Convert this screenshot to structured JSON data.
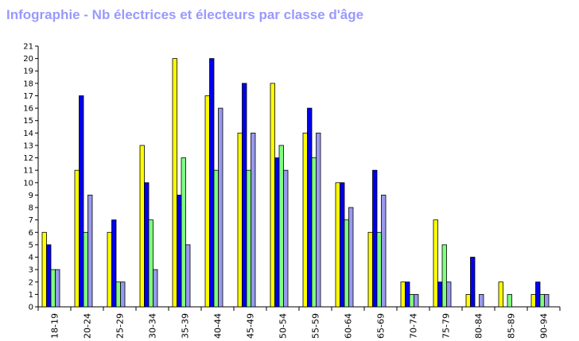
{
  "chart_data": {
    "type": "bar",
    "title": "Infographie - Nb électrices et électeurs par classe d'âge",
    "xlabel": "",
    "ylabel": "",
    "ylim": [
      0,
      21
    ],
    "yticks": [
      0,
      1,
      2,
      3,
      4,
      5,
      6,
      7,
      8,
      9,
      10,
      11,
      12,
      13,
      14,
      15,
      16,
      17,
      18,
      19,
      20,
      21
    ],
    "grid": false,
    "legend": "none",
    "categories": [
      "18-19",
      "20-24",
      "25-29",
      "30-34",
      "35-39",
      "40-44",
      "45-49",
      "50-54",
      "55-59",
      "60-64",
      "65-69",
      "70-74",
      "75-79",
      "80-84",
      "85-89",
      "90-94"
    ],
    "series": [
      {
        "color": "#ffff00",
        "values": [
          6,
          11,
          6,
          13,
          20,
          17,
          14,
          18,
          14,
          10,
          6,
          2,
          7,
          1,
          2,
          1
        ]
      },
      {
        "color": "#0000ee",
        "values": [
          5,
          17,
          7,
          10,
          9,
          20,
          18,
          12,
          16,
          10,
          11,
          2,
          2,
          4,
          0,
          2
        ]
      },
      {
        "color": "#80ff80",
        "values": [
          3,
          6,
          2,
          7,
          12,
          11,
          11,
          13,
          12,
          7,
          6,
          1,
          5,
          0,
          1,
          1
        ]
      },
      {
        "color": "#9999ee",
        "values": [
          3,
          9,
          2,
          3,
          5,
          16,
          14,
          11,
          14,
          8,
          9,
          1,
          2,
          1,
          0,
          1
        ]
      }
    ]
  }
}
